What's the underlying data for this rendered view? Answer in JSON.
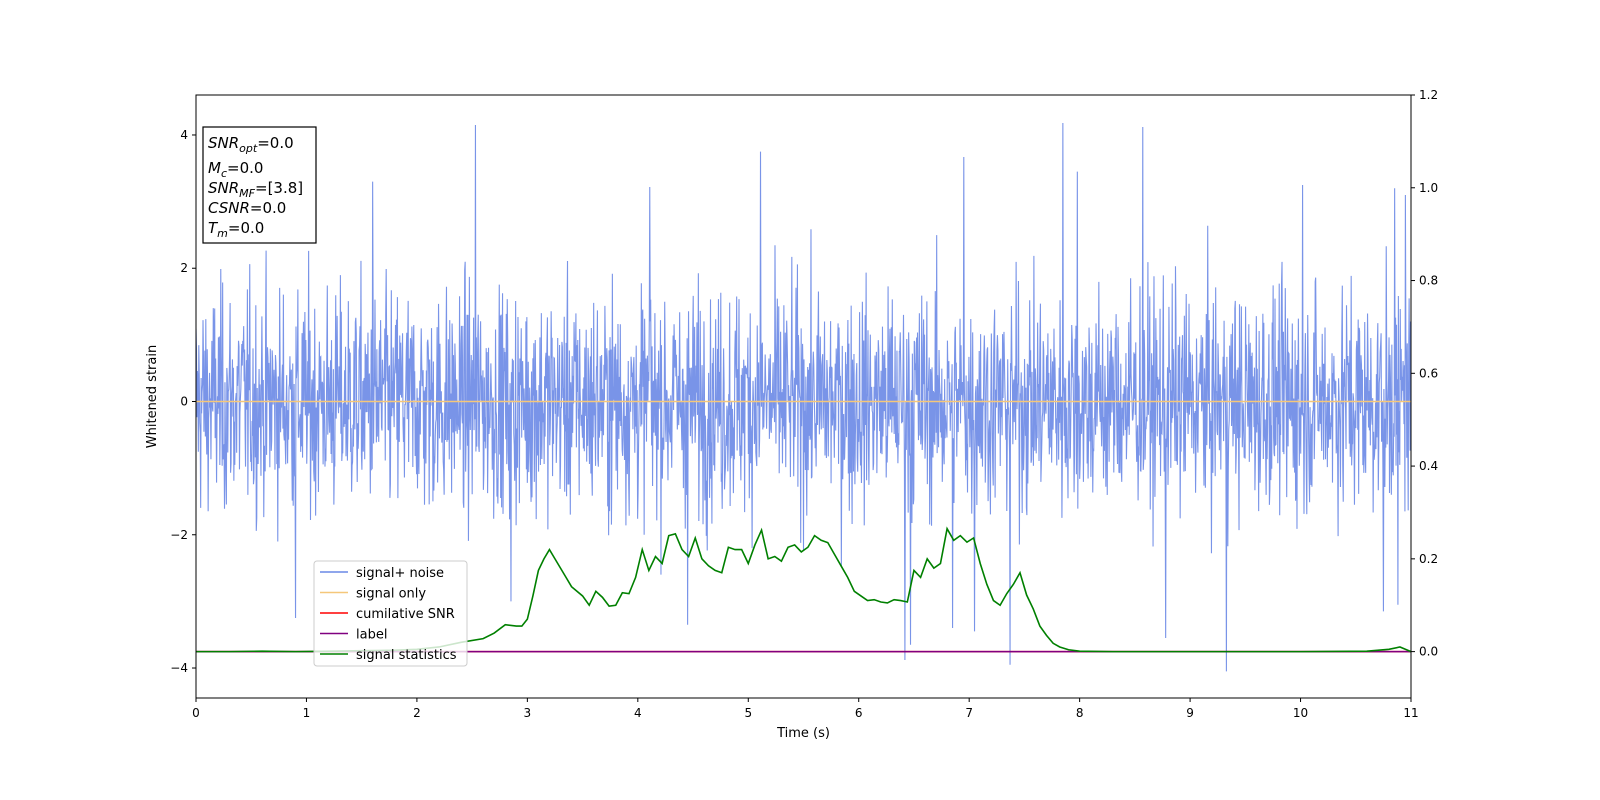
{
  "chart_data": {
    "type": "line",
    "title": "",
    "xlabel": "Time (s)",
    "ylabel": "Whitened strain",
    "y2label": "",
    "xlim": [
      0,
      11
    ],
    "ylim": [
      -4.45,
      4.6
    ],
    "y2lim": [
      -0.1,
      1.2
    ],
    "xticks": [
      0,
      1,
      2,
      3,
      4,
      5,
      6,
      7,
      8,
      9,
      10,
      11
    ],
    "yticks": [
      -4,
      -2,
      0,
      2,
      4
    ],
    "y2ticks": [
      0.0,
      0.2,
      0.4,
      0.6,
      0.8,
      1.0,
      1.2
    ],
    "x_tick_labels": [
      "0",
      "1",
      "2",
      "3",
      "4",
      "5",
      "6",
      "7",
      "8",
      "9",
      "10",
      "11"
    ],
    "y_tick_labels": [
      "−4",
      "−2",
      "0",
      "2",
      "4"
    ],
    "y2_tick_labels": [
      "0.0",
      "0.2",
      "0.4",
      "0.6",
      "0.8",
      "1.0",
      "1.2"
    ],
    "grid": false,
    "legend_position": "lower-left",
    "series": [
      {
        "name": "signal+ noise",
        "axis": "left",
        "color": "#6a88e6",
        "style": "dense-noise",
        "sigma": 0.82,
        "peaks": [
          {
            "x": 2.53,
            "y": 4.15
          },
          {
            "x": 7.85,
            "y": 4.18
          },
          {
            "x": 8.57,
            "y": 4.12
          },
          {
            "x": 5.11,
            "y": 3.75
          },
          {
            "x": 6.95,
            "y": 3.67
          },
          {
            "x": 6.42,
            "y": 3.5
          },
          {
            "x": 1.6,
            "y": 3.3
          },
          {
            "x": 4.11,
            "y": 3.22
          },
          {
            "x": 7.98,
            "y": 3.45
          },
          {
            "x": 10.95,
            "y": 3.1
          },
          {
            "x": 10.85,
            "y": 3.2
          },
          {
            "x": 10.02,
            "y": 3.25
          },
          {
            "x": 9.33,
            "y": -4.05
          },
          {
            "x": 7.37,
            "y": -3.95
          },
          {
            "x": 6.42,
            "y": -3.88
          },
          {
            "x": 6.47,
            "y": -3.65
          },
          {
            "x": 6.85,
            "y": -3.4
          },
          {
            "x": 4.45,
            "y": -3.35
          },
          {
            "x": 7.05,
            "y": -3.45
          },
          {
            "x": 8.78,
            "y": -3.55
          },
          {
            "x": 0.9,
            "y": -3.25
          },
          {
            "x": 10.75,
            "y": -3.15
          },
          {
            "x": 10.88,
            "y": -3.05
          },
          {
            "x": 2.85,
            "y": -3.0
          }
        ]
      },
      {
        "name": "signal only",
        "axis": "left",
        "color": "#f5c77a",
        "x": [
          0,
          11
        ],
        "y": [
          0,
          0
        ]
      },
      {
        "name": "cumilative SNR",
        "axis": "right",
        "color": "#ff0000",
        "x": [
          0,
          11
        ],
        "y": [
          0,
          0
        ]
      },
      {
        "name": "label",
        "axis": "right",
        "color": "#800080",
        "x": [
          0,
          11
        ],
        "y": [
          0,
          0
        ]
      },
      {
        "name": "signal statistics",
        "axis": "right",
        "color": "#008000",
        "x": [
          0,
          0.3,
          0.6,
          0.9,
          1.2,
          1.5,
          1.8,
          2.0,
          2.2,
          2.4,
          2.6,
          2.7,
          2.8,
          2.9,
          2.95,
          3.0,
          3.05,
          3.1,
          3.15,
          3.2,
          3.25,
          3.3,
          3.35,
          3.4,
          3.5,
          3.56,
          3.62,
          3.68,
          3.74,
          3.8,
          3.86,
          3.92,
          3.98,
          4.04,
          4.1,
          4.16,
          4.22,
          4.28,
          4.34,
          4.4,
          4.46,
          4.52,
          4.58,
          4.64,
          4.7,
          4.76,
          4.82,
          4.88,
          4.94,
          5.0,
          5.06,
          5.12,
          5.18,
          5.24,
          5.3,
          5.36,
          5.42,
          5.48,
          5.54,
          5.6,
          5.66,
          5.72,
          5.78,
          5.84,
          5.9,
          5.96,
          6.02,
          6.08,
          6.14,
          6.2,
          6.26,
          6.32,
          6.38,
          6.44,
          6.5,
          6.56,
          6.62,
          6.68,
          6.74,
          6.8,
          6.86,
          6.92,
          6.98,
          7.04,
          7.1,
          7.16,
          7.22,
          7.28,
          7.34,
          7.4,
          7.46,
          7.52,
          7.58,
          7.64,
          7.7,
          7.76,
          7.82,
          7.9,
          8.0,
          8.3,
          9.0,
          10.0,
          10.6,
          10.8,
          10.9,
          11.0
        ],
        "y": [
          0.0,
          0.0,
          0.001,
          0.0,
          0.001,
          0.002,
          0.003,
          0.005,
          0.01,
          0.02,
          0.028,
          0.04,
          0.058,
          0.055,
          0.055,
          0.07,
          0.12,
          0.175,
          0.2,
          0.22,
          0.2,
          0.18,
          0.16,
          0.14,
          0.12,
          0.1,
          0.13,
          0.117,
          0.098,
          0.1,
          0.127,
          0.125,
          0.16,
          0.22,
          0.175,
          0.205,
          0.19,
          0.25,
          0.254,
          0.22,
          0.205,
          0.245,
          0.2,
          0.185,
          0.175,
          0.17,
          0.225,
          0.22,
          0.22,
          0.19,
          0.23,
          0.262,
          0.2,
          0.205,
          0.195,
          0.225,
          0.23,
          0.215,
          0.225,
          0.25,
          0.24,
          0.235,
          0.21,
          0.185,
          0.16,
          0.13,
          0.12,
          0.11,
          0.112,
          0.107,
          0.105,
          0.112,
          0.11,
          0.107,
          0.175,
          0.16,
          0.2,
          0.18,
          0.19,
          0.265,
          0.24,
          0.25,
          0.236,
          0.245,
          0.19,
          0.145,
          0.11,
          0.1,
          0.125,
          0.145,
          0.17,
          0.122,
          0.092,
          0.055,
          0.035,
          0.018,
          0.01,
          0.004,
          0.001,
          0.0,
          0.0,
          0.0,
          0.001,
          0.005,
          0.01,
          0.0
        ]
      }
    ],
    "legend": [
      {
        "label": "signal+ noise",
        "color": "#6a88e6"
      },
      {
        "label": "signal only",
        "color": "#f5c77a"
      },
      {
        "label": "cumilative SNR",
        "color": "#ff0000"
      },
      {
        "label": "label",
        "color": "#800080"
      },
      {
        "label": "signal statistics",
        "color": "#008000"
      }
    ],
    "annotation": {
      "lines": [
        {
          "base": "SNR",
          "sub": "opt",
          "value": "=0.0"
        },
        {
          "base": "M",
          "sub": "c",
          "value": "=0.0"
        },
        {
          "base": "SNR",
          "sub": "MF",
          "value": "=[3.8]"
        },
        {
          "base": "CSNR",
          "sub": "",
          "value": "=0.0"
        },
        {
          "base": "T",
          "sub": "m",
          "value": "=0.0"
        }
      ]
    }
  }
}
